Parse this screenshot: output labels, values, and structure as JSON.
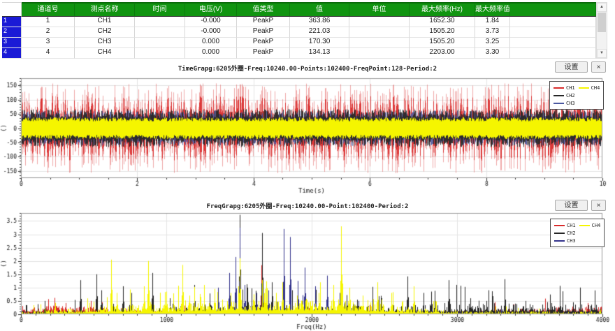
{
  "table": {
    "columns": [
      "通道号",
      "测点名称",
      "时间",
      "电压(V)",
      "值类型",
      "值",
      "单位",
      "最大频率(Hz)",
      "最大频率值",
      ""
    ],
    "rows": [
      {
        "num": "1",
        "cells": [
          "1",
          "CH1",
          "",
          "-0.000",
          "PeakP",
          "363.86",
          "",
          "1652.30",
          "1.84",
          ""
        ]
      },
      {
        "num": "2",
        "cells": [
          "2",
          "CH2",
          "",
          "-0.000",
          "PeakP",
          "221.03",
          "",
          "1505.20",
          "3.73",
          ""
        ]
      },
      {
        "num": "3",
        "cells": [
          "3",
          "CH3",
          "",
          "0.000",
          "PeakP",
          "170.30",
          "",
          "1505.20",
          "3.25",
          ""
        ]
      },
      {
        "num": "4",
        "cells": [
          "4",
          "CH4",
          "",
          "0.000",
          "PeakP",
          "134.13",
          "",
          "2203.00",
          "3.30",
          ""
        ]
      }
    ],
    "scrollbar": {
      "up": "▲",
      "down": "▼"
    }
  },
  "buttons": {
    "settings": "设置",
    "close": "×"
  },
  "colors": {
    "header_green": "#109410",
    "row_header_blue": "#1a1ad6",
    "ch1": "#d92b2b",
    "ch2": "#262626",
    "ch3": "#4a58a0",
    "ch4": "#f5f500"
  },
  "chart_data": [
    {
      "type": "line",
      "id": "time",
      "title": "TimeGrapg:6205外圈-Freq:10240.00-Points:102400-FreqPoint:128-Period:2",
      "xlabel": "Time(s)",
      "ylabel": "()",
      "xlim": [
        0,
        10
      ],
      "ylim": [
        -175,
        175
      ],
      "xticks": [
        0,
        2,
        4,
        6,
        8,
        10
      ],
      "yticks": [
        -150,
        -100,
        -50,
        0,
        50,
        100,
        150
      ],
      "xminor": 0.5,
      "yminor": 10,
      "grid": true,
      "legend_position": "top-right",
      "draw_order": [
        0,
        2,
        1,
        3
      ],
      "series": [
        {
          "name": "CH1",
          "color": "#d92b2b",
          "band_min": 38,
          "band_max": 158,
          "pow": 2.0,
          "passes": [
            {
              "alpha": 0.4,
              "scale": 1.0
            },
            {
              "alpha": 0.9,
              "scale": 0.72
            }
          ]
        },
        {
          "name": "CH2",
          "color": "#262626",
          "band_min": 33,
          "band_max": 67,
          "pow": 1.25,
          "passes": [
            {
              "alpha": 0.9,
              "scale": 1.0
            }
          ]
        },
        {
          "name": "CH3",
          "color": "#4a58a0",
          "band_min": 30,
          "band_max": 62,
          "pow": 1.3,
          "passes": [
            {
              "alpha": 0.85,
              "scale": 1.0
            }
          ]
        },
        {
          "name": "CH4",
          "color": "#f5f500",
          "band_min": 24,
          "band_max": 38,
          "pow": 1.0,
          "passes": [
            {
              "alpha": 1.0,
              "scale": 1.0
            }
          ]
        }
      ]
    },
    {
      "type": "line",
      "id": "freq",
      "title": "FreqGrapg:6205外圈-Freq:10240.00-Point:102400-Period:2",
      "xlabel": "Freq(Hz)",
      "ylabel": "()",
      "xlim": [
        0,
        4000
      ],
      "ylim": [
        0,
        3.8
      ],
      "xticks": [
        0,
        1000,
        2000,
        3000,
        4000
      ],
      "yticks": [
        0,
        0.5,
        1,
        1.5,
        2,
        2.5,
        3,
        3.5
      ],
      "xminor": 100,
      "yminor": 0.1,
      "grid": true,
      "legend_position": "top-right",
      "draw_order": [
        0,
        1,
        2,
        3
      ],
      "series": [
        {
          "name": "CH1",
          "color": "#d92b2b",
          "fpow": 1.6,
          "spike_chance": 0.02,
          "spike_mult": 1.6,
          "floor": [
            [
              0,
              0.32
            ],
            [
              400,
              0.3
            ],
            [
              900,
              0.18
            ],
            [
              1400,
              0.14
            ],
            [
              2000,
              0.12
            ],
            [
              2600,
              0.1
            ],
            [
              3000,
              0.14
            ],
            [
              3400,
              0.2
            ],
            [
              4000,
              0.34
            ]
          ],
          "peaks": [
            [
              310,
              0.42
            ],
            [
              480,
              0.5
            ],
            [
              560,
              0.45
            ],
            [
              1652,
              1.84
            ],
            [
              2400,
              0.35
            ],
            [
              3900,
              0.42
            ]
          ]
        },
        {
          "name": "CH2",
          "color": "#262626",
          "fpow": 3.0,
          "spike_chance": 0.04,
          "spike_mult": 2.2,
          "floor": [
            [
              0,
              0.12
            ],
            [
              600,
              0.2
            ],
            [
              1000,
              0.28
            ],
            [
              1600,
              0.4
            ],
            [
              2200,
              0.35
            ],
            [
              2800,
              0.38
            ],
            [
              3300,
              0.42
            ],
            [
              4000,
              0.36
            ]
          ],
          "peaks": [
            [
              165,
              0.5
            ],
            [
              410,
              1.28
            ],
            [
              520,
              1.5
            ],
            [
              555,
              0.9
            ],
            [
              700,
              1.05
            ],
            [
              760,
              0.8
            ],
            [
              905,
              1.55
            ],
            [
              1025,
              0.6
            ],
            [
              1190,
              1.1
            ],
            [
              1300,
              0.78
            ],
            [
              1505,
              3.73
            ],
            [
              1560,
              1.0
            ],
            [
              1660,
              3.05
            ],
            [
              1725,
              1.2
            ],
            [
              2105,
              1.3
            ],
            [
              2240,
              0.72
            ],
            [
              2480,
              0.6
            ],
            [
              2660,
              1.42
            ],
            [
              2820,
              0.85
            ],
            [
              2940,
              1.28
            ],
            [
              3090,
              0.6
            ],
            [
              3200,
              0.5
            ],
            [
              3330,
              0.55
            ],
            [
              3470,
              0.5
            ],
            [
              3650,
              0.42
            ],
            [
              3800,
              0.45
            ]
          ]
        },
        {
          "name": "CH3",
          "color": "#32328c",
          "fpow": 2.5,
          "spike_chance": 0.02,
          "spike_mult": 1.8,
          "floor": [
            [
              0,
              0.05
            ],
            [
              1200,
              0.12
            ],
            [
              1450,
              0.35
            ],
            [
              1900,
              0.3
            ],
            [
              2300,
              0.15
            ],
            [
              3000,
              0.08
            ],
            [
              4000,
              0.06
            ]
          ],
          "peaks": [
            [
              1355,
              1.0
            ],
            [
              1435,
              1.55
            ],
            [
              1478,
              2.15
            ],
            [
              1505,
              3.25
            ],
            [
              1540,
              1.1
            ],
            [
              1620,
              0.8
            ],
            [
              1700,
              0.9
            ],
            [
              1810,
              3.2
            ],
            [
              1852,
              2.9
            ],
            [
              1905,
              1.25
            ],
            [
              1952,
              1.75
            ],
            [
              2022,
              1.05
            ],
            [
              2105,
              1.45
            ],
            [
              2190,
              0.8
            ],
            [
              2320,
              0.5
            ]
          ]
        },
        {
          "name": "CH4",
          "color": "#f5f500",
          "fpow": 2.0,
          "spike_chance": 0.05,
          "spike_mult": 1.7,
          "floor": [
            [
              0,
              0.1
            ],
            [
              700,
              0.35
            ],
            [
              1000,
              0.4
            ],
            [
              1500,
              0.55
            ],
            [
              2200,
              0.6
            ],
            [
              2600,
              0.3
            ],
            [
              3000,
              0.12
            ],
            [
              4000,
              0.1
            ]
          ],
          "peaks": [
            [
              620,
              2.05
            ],
            [
              660,
              0.8
            ],
            [
              845,
              1.05
            ],
            [
              875,
              2.0
            ],
            [
              1000,
              0.85
            ],
            [
              1110,
              1.85
            ],
            [
              1160,
              0.7
            ],
            [
              1235,
              0.65
            ],
            [
              1330,
              0.95
            ],
            [
              1440,
              0.8
            ],
            [
              1505,
              2.1
            ],
            [
              1600,
              0.75
            ],
            [
              1680,
              0.95
            ],
            [
              1800,
              1.2
            ],
            [
              1900,
              0.7
            ],
            [
              2050,
              0.8
            ],
            [
              2150,
              1.1
            ],
            [
              2203,
              3.3
            ],
            [
              2260,
              1.0
            ],
            [
              2350,
              0.7
            ],
            [
              2450,
              1.2
            ],
            [
              2550,
              0.8
            ],
            [
              2700,
              1.05
            ],
            [
              2850,
              0.5
            ]
          ]
        }
      ]
    }
  ]
}
